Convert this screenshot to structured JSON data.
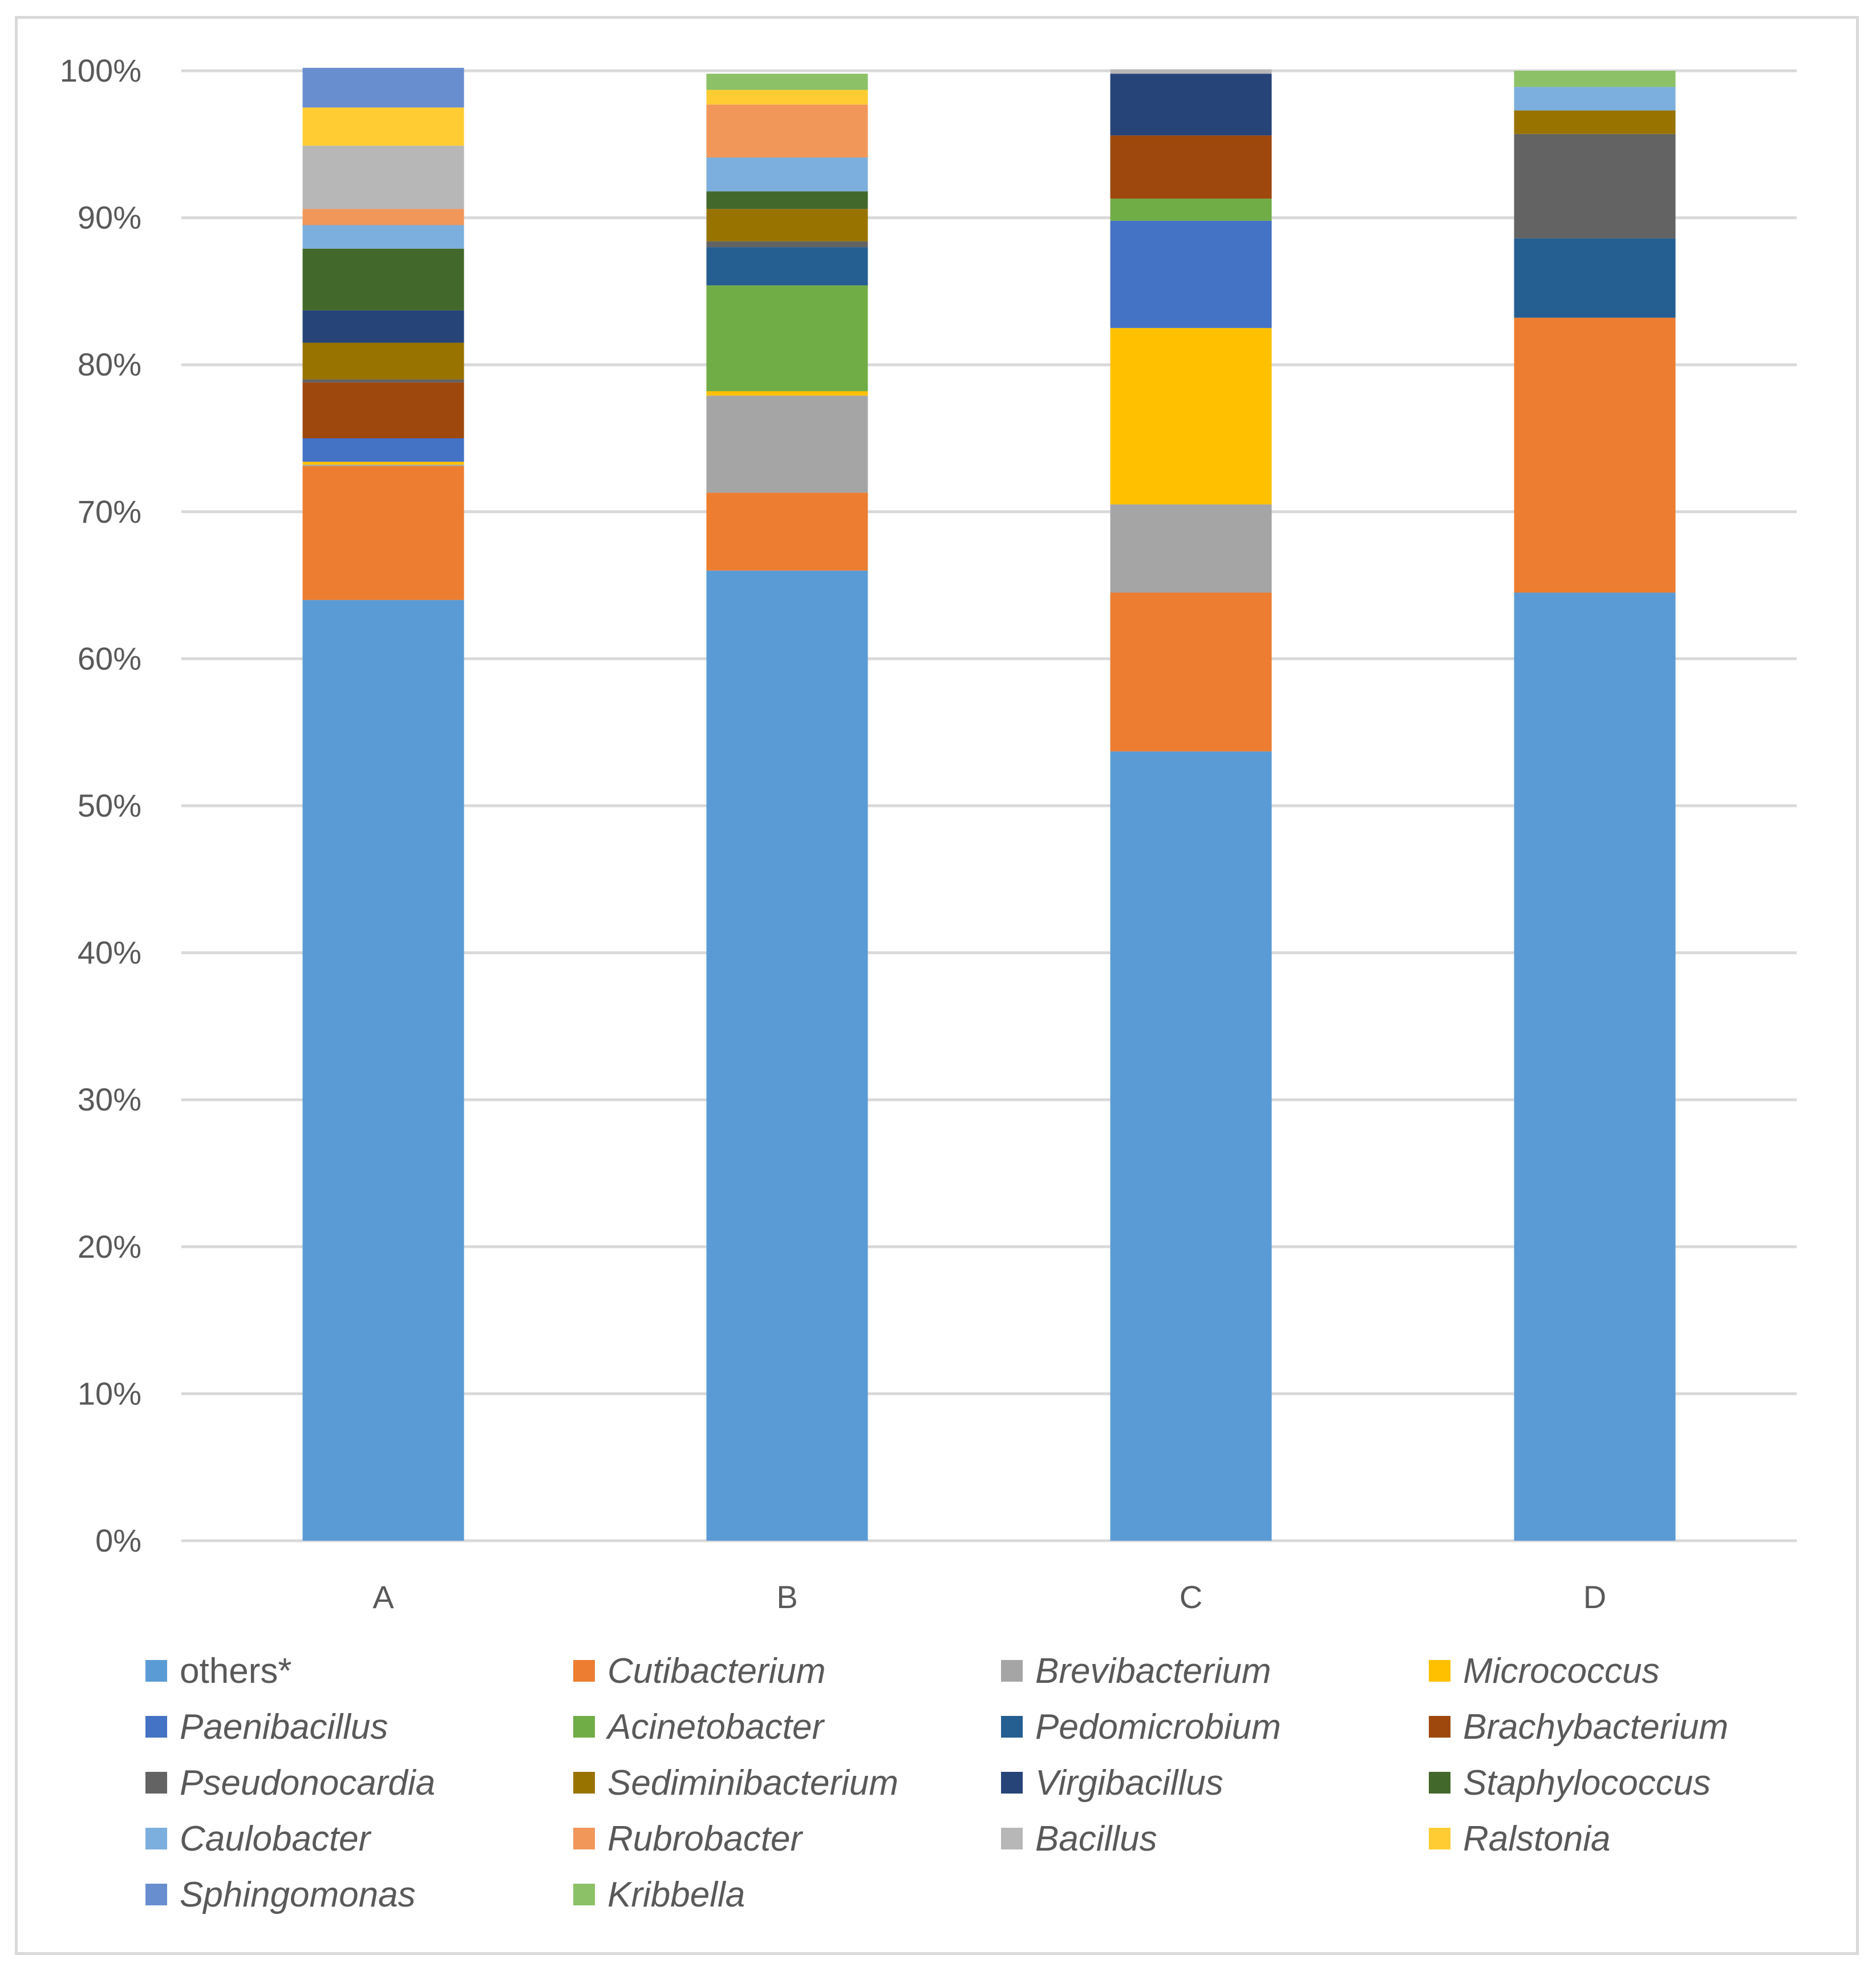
{
  "chart_data": {
    "type": "bar",
    "stacked": true,
    "normalized": true,
    "title": "",
    "xlabel": "",
    "ylabel": "",
    "ylim": [
      0,
      100
    ],
    "yticks": [
      "0%",
      "10%",
      "20%",
      "30%",
      "40%",
      "50%",
      "60%",
      "70%",
      "80%",
      "90%",
      "100%"
    ],
    "grid": true,
    "legend_position": "bottom",
    "categories": [
      "A",
      "B",
      "C",
      "D"
    ],
    "series": [
      {
        "name": "others*",
        "color": "#5b9bd5",
        "values": [
          64.0,
          66.0,
          53.7,
          64.5
        ]
      },
      {
        "name": "Cutibacterium",
        "color": "#ed7d31",
        "values": [
          9.1,
          5.3,
          10.8,
          18.7
        ]
      },
      {
        "name": "Brevibacterium",
        "color": "#a5a5a5",
        "values": [
          0.1,
          6.6,
          6.0,
          0
        ]
      },
      {
        "name": "Micrococcus",
        "color": "#ffc000",
        "values": [
          0.2,
          0.3,
          12.0,
          0
        ]
      },
      {
        "name": "Paenibacillus",
        "color": "#4472c4",
        "values": [
          1.6,
          0,
          7.3,
          0
        ]
      },
      {
        "name": "Acinetobacter",
        "color": "#70ad47",
        "values": [
          0,
          7.2,
          1.5,
          0
        ]
      },
      {
        "name": "Pedomicrobium",
        "color": "#255e91",
        "values": [
          0,
          2.6,
          0,
          5.4
        ]
      },
      {
        "name": "Brachybacterium",
        "color": "#9e480e",
        "values": [
          3.8,
          0,
          4.3,
          0
        ]
      },
      {
        "name": "Pseudonocardia",
        "color": "#636363",
        "values": [
          0.2,
          0.4,
          0,
          7.1
        ]
      },
      {
        "name": "Sediminibacterium",
        "color": "#997300",
        "values": [
          2.5,
          2.2,
          0,
          1.6
        ]
      },
      {
        "name": "Virgibacillus",
        "color": "#264478",
        "values": [
          2.2,
          0,
          4.2,
          0
        ]
      },
      {
        "name": "Staphylococcus",
        "color": "#43682b",
        "values": [
          4.2,
          1.2,
          0,
          0
        ]
      },
      {
        "name": "Caulobacter",
        "color": "#7cafdd",
        "values": [
          1.6,
          2.3,
          0,
          1.6
        ]
      },
      {
        "name": "Rubrobacter",
        "color": "#f1975a",
        "values": [
          1.1,
          3.6,
          0,
          0
        ]
      },
      {
        "name": "Bacillus",
        "color": "#b7b7b7",
        "values": [
          4.3,
          0,
          0.3,
          0
        ]
      },
      {
        "name": "Ralstonia",
        "color": "#ffcd33",
        "values": [
          2.6,
          1.0,
          0,
          0
        ]
      },
      {
        "name": "Sphingomonas",
        "color": "#698ed0",
        "values": [
          2.7,
          0,
          0,
          0
        ]
      },
      {
        "name": "Kribbella",
        "color": "#8cc168",
        "values": [
          0,
          1.1,
          0,
          1.1
        ]
      }
    ]
  }
}
